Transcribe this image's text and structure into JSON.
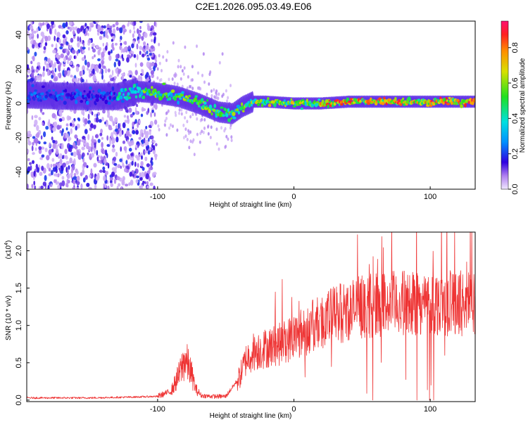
{
  "title": "C2E1.2026.095.03.49.E06",
  "chart_data": [
    {
      "type": "heatmap",
      "name": "spectrogram",
      "xlabel": "Height of straight line (km)",
      "ylabel": "Frequency (Hz)",
      "xlim": [
        -196,
        133
      ],
      "ylim": [
        -50,
        48
      ],
      "xticks": [
        -100,
        0,
        100
      ],
      "xtick_labels": [
        "-100",
        "0",
        "100"
      ],
      "yticks": [
        -40,
        -20,
        0,
        20,
        40
      ],
      "ytick_labels": [
        "-40",
        "-20",
        "0",
        "20",
        "40"
      ],
      "colorbar": {
        "label": "Normalized spectral amplitude",
        "range": [
          0,
          0.95
        ],
        "ticks": [
          0,
          0.2,
          0.4,
          0.6,
          0.8
        ],
        "tick_labels": [
          "0.0",
          "0.2",
          "0.4",
          "0.6",
          "0.8"
        ]
      },
      "ridge": {
        "x": [
          -196,
          -160,
          -130,
          -115,
          -100,
          -85,
          -70,
          -55,
          -45,
          -38,
          -30,
          -20,
          0,
          20,
          40,
          60,
          80,
          100,
          120,
          133
        ],
        "freq": [
          5,
          4,
          4,
          7,
          6,
          4,
          0,
          -5,
          -6,
          -2,
          1,
          1,
          0,
          0,
          1,
          1,
          1,
          1,
          1,
          1
        ]
      }
    },
    {
      "type": "line",
      "name": "snr",
      "xlabel": "Height of straight line (km)",
      "ylabel": "SNR (10 * v/v)",
      "scale_label": "(x10",
      "scale_exp": "4",
      "scale_close": ")",
      "xlim": [
        -196,
        133
      ],
      "ylim": [
        -0.02,
        2.25
      ],
      "xticks": [
        -100,
        0,
        100
      ],
      "xtick_labels": [
        "-100",
        "0",
        "100"
      ],
      "yticks": [
        0,
        0.5,
        1.0,
        1.5,
        2.0
      ],
      "ytick_labels": [
        "0.0",
        "0.5",
        "1.0",
        "1.5",
        "2.0"
      ],
      "color": "#ee3333",
      "envelope": {
        "x": [
          -196,
          -150,
          -120,
          -100,
          -90,
          -84,
          -80,
          -76,
          -72,
          -68,
          -60,
          -50,
          -40,
          -35,
          -30,
          -20,
          -10,
          0,
          10,
          20,
          30,
          40,
          50,
          60,
          80,
          100,
          120,
          133
        ],
        "y": [
          0.03,
          0.03,
          0.04,
          0.05,
          0.12,
          0.35,
          0.55,
          0.4,
          0.15,
          0.06,
          0.05,
          0.05,
          0.3,
          0.55,
          0.65,
          0.7,
          0.75,
          0.85,
          0.95,
          1.05,
          1.15,
          1.2,
          1.25,
          1.28,
          1.3,
          1.3,
          1.3,
          1.3
        ]
      }
    }
  ]
}
